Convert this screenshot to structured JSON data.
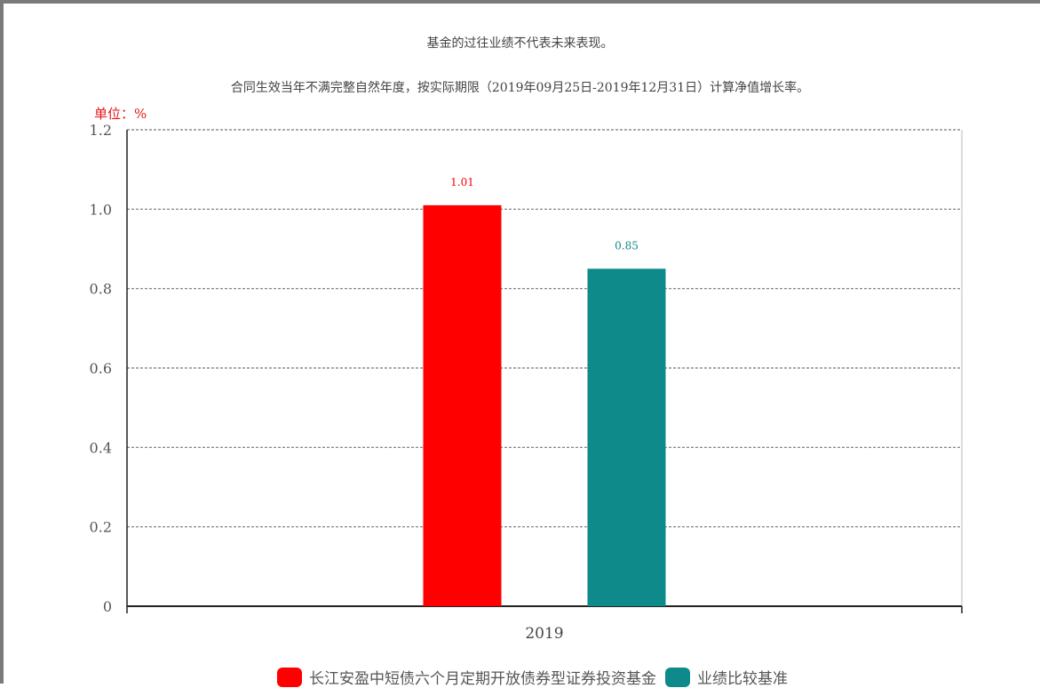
{
  "notes": {
    "line1": "基金的过往业绩不代表未来表现。",
    "line2": "合同生效当年不满完整自然年度，按实际期限（2019年09月25日-2019年12月31日）计算净值增长率。"
  },
  "unit_label": "单位：%",
  "chart_data": {
    "type": "bar",
    "title": "",
    "xlabel": "",
    "ylabel": "单位：%",
    "categories": [
      "2019"
    ],
    "ylim": [
      0,
      1.2
    ],
    "yticks": [
      0,
      0.2,
      0.4,
      0.6,
      0.8,
      1.0,
      1.2
    ],
    "ytick_labels": [
      "0",
      "0.2",
      "0.4",
      "0.6",
      "0.8",
      "1.0",
      "1.2"
    ],
    "grid": true,
    "legend_position": "bottom",
    "series": [
      {
        "name": "长江安盈中短债六个月定期开放债券型证券投资基金",
        "values": [
          1.01
        ],
        "value_labels": [
          "1.01"
        ],
        "color": "#ff0000"
      },
      {
        "name": "业绩比较基准",
        "values": [
          0.85
        ],
        "value_labels": [
          "0.85"
        ],
        "color": "#0e8a8a"
      }
    ]
  }
}
